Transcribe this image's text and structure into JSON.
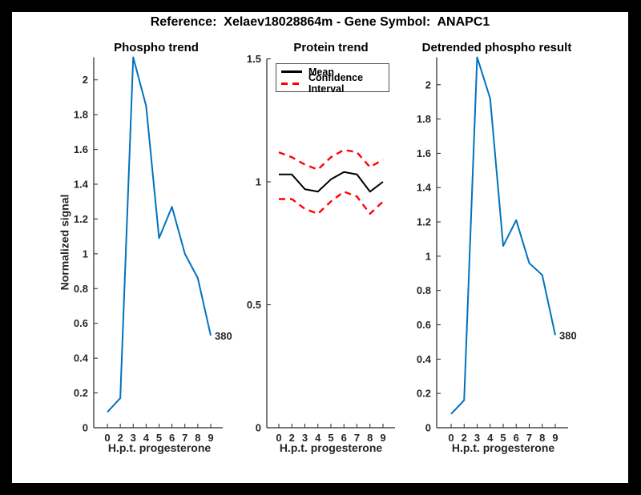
{
  "figure_title": "Reference:  Xelaev18028864m - Gene Symbol:  ANAPC1",
  "axis_color": "#262626",
  "chart_data": [
    {
      "type": "line",
      "title": "Phospho trend",
      "xlabel": "H.p.t. progesterone",
      "ylabel": "Normalized signal",
      "x_tick_labels": [
        "0",
        "2",
        "3",
        "4",
        "5",
        "6",
        "7",
        "8",
        "9"
      ],
      "yticks": [
        0,
        0.2,
        0.4,
        0.6,
        0.8,
        1,
        1.2,
        1.4,
        1.6,
        1.8,
        2
      ],
      "ytick_labels": [
        "0",
        "0.2",
        "0.4",
        "0.6",
        "0.8",
        "1",
        "1.2",
        "1.4",
        "1.6",
        "1.8",
        "2"
      ],
      "ylim": [
        0,
        2.13
      ],
      "grid": false,
      "series": [
        {
          "name": "phospho-signal",
          "color": "#0072BD",
          "style": "solid",
          "width": 2,
          "values": [
            0.09,
            0.17,
            2.13,
            1.85,
            1.09,
            1.27,
            1.0,
            0.86,
            0.53
          ]
        }
      ],
      "end_label": "380"
    },
    {
      "type": "line",
      "title": "Protein trend",
      "xlabel": "H.p.t. progesterone",
      "ylabel": "",
      "x_tick_labels": [
        "0",
        "2",
        "3",
        "4",
        "5",
        "6",
        "7",
        "8",
        "9"
      ],
      "yticks": [
        0,
        0.5,
        1,
        1.5
      ],
      "ytick_labels": [
        "0",
        "0.5",
        "1",
        "1.5"
      ],
      "ylim": [
        0,
        1.5
      ],
      "grid": false,
      "legend": [
        "Mean",
        "Confidence Interval"
      ],
      "legend_position": "northeast-inside",
      "series": [
        {
          "name": "mean",
          "color": "#000000",
          "style": "solid",
          "width": 2,
          "values": [
            1.03,
            1.03,
            0.97,
            0.96,
            1.01,
            1.04,
            1.03,
            0.96,
            1.0
          ]
        },
        {
          "name": "confidence-upper",
          "color": "#ff0000",
          "style": "dashed",
          "width": 2.4,
          "values": [
            1.12,
            1.1,
            1.07,
            1.05,
            1.1,
            1.13,
            1.12,
            1.06,
            1.09
          ]
        },
        {
          "name": "confidence-lower",
          "color": "#ff0000",
          "style": "dashed",
          "width": 2.4,
          "values": [
            0.93,
            0.93,
            0.89,
            0.87,
            0.92,
            0.96,
            0.94,
            0.87,
            0.92
          ]
        }
      ]
    },
    {
      "type": "line",
      "title": "Detrended phospho result",
      "xlabel": "H.p.t. progesterone",
      "ylabel": "",
      "x_tick_labels": [
        "0",
        "2",
        "3",
        "4",
        "5",
        "6",
        "7",
        "8",
        "9"
      ],
      "yticks": [
        0,
        0.2,
        0.4,
        0.6,
        0.8,
        1,
        1.2,
        1.4,
        1.6,
        1.8,
        2
      ],
      "ytick_labels": [
        "0",
        "0.2",
        "0.4",
        "0.6",
        "0.8",
        "1",
        "1.2",
        "1.4",
        "1.6",
        "1.8",
        "2"
      ],
      "ylim": [
        0,
        2.16
      ],
      "grid": false,
      "series": [
        {
          "name": "detrended-phospho",
          "color": "#0072BD",
          "style": "solid",
          "width": 2,
          "values": [
            0.08,
            0.16,
            2.16,
            1.92,
            1.06,
            1.21,
            0.96,
            0.89,
            0.54
          ]
        }
      ],
      "end_label": "380"
    }
  ]
}
